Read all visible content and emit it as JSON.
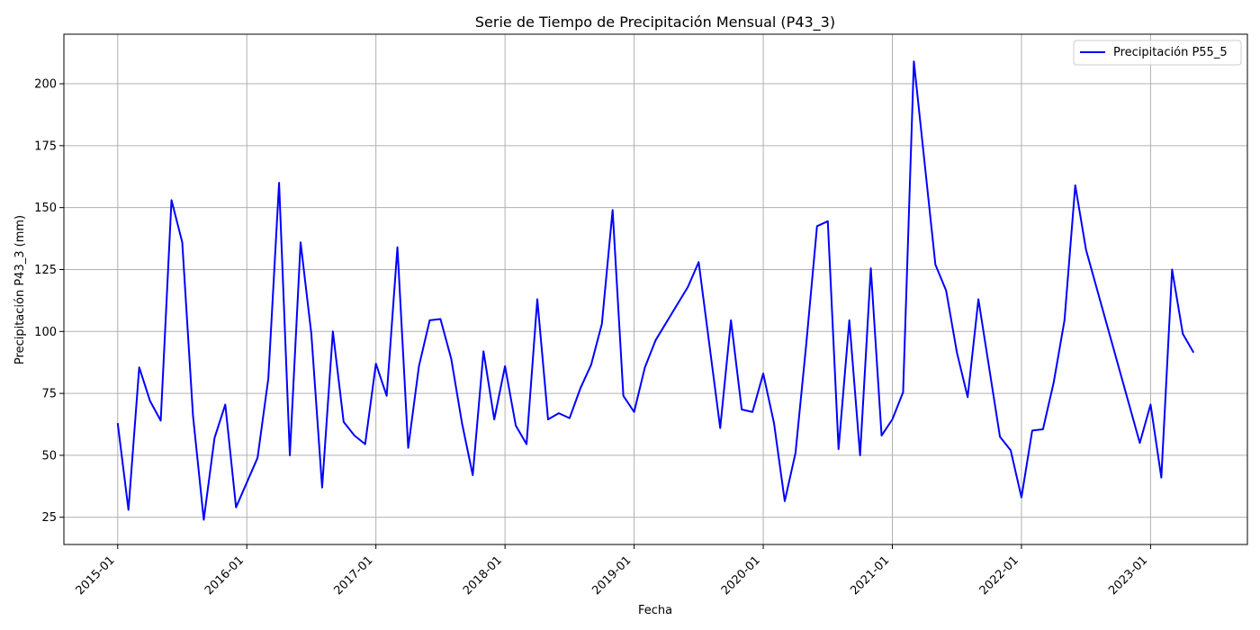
{
  "chart_data": {
    "type": "line",
    "title": "Serie de Tiempo de Precipitación Mensual (P43_3)",
    "xlabel": "Fecha",
    "ylabel": "Precipitación P43_3 (mm)",
    "ylim": [
      14,
      220
    ],
    "xlim": [
      "2014-08",
      "2023-10"
    ],
    "grid": true,
    "legend_position": "top-right",
    "x_ticks": [
      "2015-01",
      "2016-01",
      "2017-01",
      "2018-01",
      "2019-01",
      "2020-01",
      "2021-01",
      "2022-01",
      "2023-01"
    ],
    "y_ticks": [
      25,
      50,
      75,
      100,
      125,
      150,
      175,
      200
    ],
    "series": [
      {
        "name": "Precipitación P55_5",
        "color": "#0000ff",
        "x": [
          "2015-01",
          "2015-02",
          "2015-03",
          "2015-04",
          "2015-05",
          "2015-06",
          "2015-07",
          "2015-08",
          "2015-09",
          "2015-10",
          "2015-11",
          "2015-12",
          "2016-02",
          "2016-03",
          "2016-04",
          "2016-05",
          "2016-06",
          "2016-07",
          "2016-08",
          "2016-09",
          "2016-10",
          "2016-11",
          "2016-12",
          "2017-01",
          "2017-02",
          "2017-03",
          "2017-04",
          "2017-05",
          "2017-06",
          "2017-07",
          "2017-08",
          "2017-09",
          "2017-10",
          "2017-11",
          "2017-12",
          "2018-01",
          "2018-02",
          "2018-03",
          "2018-04",
          "2018-05",
          "2018-06",
          "2018-07",
          "2018-08",
          "2018-09",
          "2018-10",
          "2018-11",
          "2018-12",
          "2019-01",
          "2019-02",
          "2019-03",
          "2019-06",
          "2019-07",
          "2019-09",
          "2019-10",
          "2019-11",
          "2019-12",
          "2020-01",
          "2020-02",
          "2020-03",
          "2020-04",
          "2020-05",
          "2020-06",
          "2020-07",
          "2020-08",
          "2020-09",
          "2020-10",
          "2020-11",
          "2020-12",
          "2021-01",
          "2021-02",
          "2021-03",
          "2021-05",
          "2021-06",
          "2021-07",
          "2021-08",
          "2021-09",
          "2021-11",
          "2021-12",
          "2022-01",
          "2022-02",
          "2022-03",
          "2022-04",
          "2022-05",
          "2022-06",
          "2022-07",
          "2022-12",
          "2023-01",
          "2023-02",
          "2023-03",
          "2023-04",
          "2023-05"
        ],
        "values": [
          63,
          28,
          85.5,
          72,
          64,
          153,
          136,
          66,
          24,
          57,
          70.5,
          29,
          49,
          81,
          160,
          50,
          136,
          99,
          37,
          100,
          63.5,
          58,
          54.5,
          87,
          74,
          134,
          53,
          86,
          104.5,
          105,
          89,
          63,
          42,
          92,
          64.5,
          86,
          62,
          54.5,
          113,
          64.5,
          67,
          65,
          77,
          86.5,
          103,
          149,
          74,
          67.5,
          85.5,
          96.5,
          118,
          128,
          61,
          104.5,
          68.5,
          67.5,
          83,
          63,
          31.5,
          51,
          95,
          142.5,
          144.5,
          52.5,
          104.5,
          50,
          125.5,
          58,
          64.5,
          75.5,
          209,
          127,
          116.5,
          91.5,
          73.5,
          113,
          57.5,
          52,
          33,
          60,
          60.5,
          79.5,
          104.5,
          159,
          133,
          55,
          70.5,
          41,
          125,
          99,
          91.5
        ]
      }
    ]
  }
}
